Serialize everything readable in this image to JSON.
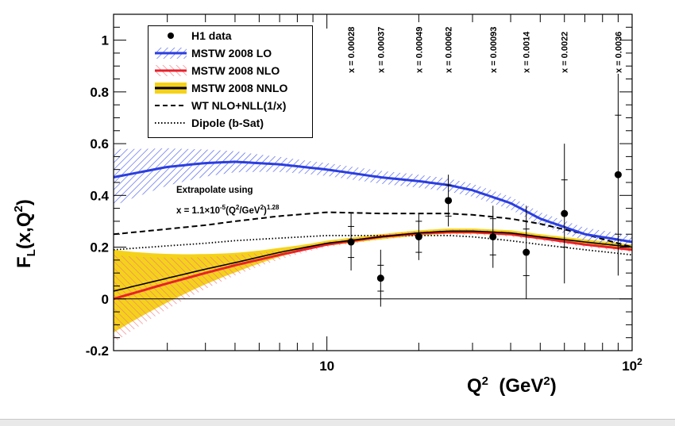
{
  "chart_data": {
    "type": "scatter",
    "title": "",
    "xlabel": {
      "main": "Q",
      "sup": "2",
      "unit": "(GeV",
      "unit_sup": "2",
      "close": ")"
    },
    "ylabel": {
      "main": "F",
      "sub": "L",
      "args": "(x,Q",
      "args_sup": "2",
      "close": ")"
    },
    "xscale": "log",
    "xlim": [
      2,
      100
    ],
    "ylim": [
      -0.2,
      1.1
    ],
    "yticks": [
      {
        "v": -0.2,
        "label": "-0.2"
      },
      {
        "v": 0,
        "label": "0"
      },
      {
        "v": 0.2,
        "label": "0.2"
      },
      {
        "v": 0.4,
        "label": "0.4"
      },
      {
        "v": 0.6,
        "label": "0.6"
      },
      {
        "v": 0.8,
        "label": "0.8"
      },
      {
        "v": 1.0,
        "label": "1"
      }
    ],
    "xticks_major": [
      {
        "v": 10,
        "label": "10"
      },
      {
        "v": 100,
        "label": "10",
        "sup": "2"
      }
    ],
    "grid": false,
    "zero_line": true,
    "legend_position": "top-left",
    "legend": [
      {
        "key": "h1",
        "label": "H1 data",
        "style": "marker"
      },
      {
        "key": "lo",
        "label": "MSTW 2008 LO",
        "style": "band",
        "color": "#2b3ee0"
      },
      {
        "key": "nlo",
        "label": "MSTW 2008 NLO",
        "style": "band",
        "color": "#e8212b"
      },
      {
        "key": "nnlo",
        "label": "MSTW 2008 NNLO",
        "style": "band",
        "color": "#000000",
        "fill": "#f5d21a"
      },
      {
        "key": "wt",
        "label": "WT NLO+NLL(1/x)",
        "style": "dashed"
      },
      {
        "key": "dipole",
        "label": "Dipole (b-Sat)",
        "style": "dotted"
      }
    ],
    "annotation": {
      "line1": "Extrapolate using",
      "line2_pre": "x = 1.1×10",
      "line2_exp1": "-5",
      "line2_mid": "(Q",
      "line2_exp2": "2",
      "line2_post": "/GeV",
      "line2_exp3": "2",
      "line2_close": ")",
      "line2_exp4": "1.28"
    },
    "x_values_labels": [
      {
        "q2": 12,
        "label": "x = 0.00028"
      },
      {
        "q2": 15,
        "label": "x = 0.00037"
      },
      {
        "q2": 20,
        "label": "x = 0.00049"
      },
      {
        "q2": 25,
        "label": "x = 0.00062"
      },
      {
        "q2": 35,
        "label": "x = 0.00093"
      },
      {
        "q2": 45,
        "label": "x = 0.0014"
      },
      {
        "q2": 60,
        "label": "x = 0.0022"
      },
      {
        "q2": 90,
        "label": "x = 0.0036"
      }
    ],
    "h1_data": [
      {
        "x": 12,
        "y": 0.22,
        "stat": 0.06,
        "tot": 0.11
      },
      {
        "x": 15,
        "y": 0.08,
        "stat": 0.05,
        "tot": 0.11
      },
      {
        "x": 20,
        "y": 0.24,
        "stat": 0.06,
        "tot": 0.09
      },
      {
        "x": 25,
        "y": 0.38,
        "stat": 0.06,
        "tot": 0.1
      },
      {
        "x": 35,
        "y": 0.24,
        "stat": 0.07,
        "tot": 0.12
      },
      {
        "x": 45,
        "y": 0.18,
        "stat": 0.09,
        "tot": 0.18
      },
      {
        "x": 60,
        "y": 0.33,
        "stat": 0.13,
        "tot": 0.27
      },
      {
        "x": 90,
        "y": 0.48,
        "stat": 0.23,
        "tot": 0.39
      }
    ],
    "series": [
      {
        "name": "MSTW 2008 LO",
        "color": "#2b3ee0",
        "x": [
          2,
          3,
          4,
          5,
          7,
          10,
          15,
          20,
          25,
          30,
          40,
          50,
          70,
          100
        ],
        "y": [
          0.47,
          0.51,
          0.525,
          0.53,
          0.52,
          0.5,
          0.47,
          0.455,
          0.44,
          0.42,
          0.37,
          0.31,
          0.25,
          0.22
        ],
        "band": 0.025,
        "band_low_q2": 0.11
      },
      {
        "name": "MSTW 2008 NLO",
        "color": "#e8212b",
        "x": [
          2,
          3,
          4,
          5,
          7,
          10,
          15,
          20,
          25,
          30,
          40,
          50,
          70,
          100
        ],
        "y": [
          0.0,
          0.06,
          0.1,
          0.13,
          0.17,
          0.21,
          0.24,
          0.253,
          0.258,
          0.258,
          0.25,
          0.235,
          0.21,
          0.19
        ],
        "band": 0.01,
        "band_low_q2": 0.17
      },
      {
        "name": "MSTW 2008 NNLO",
        "color": "#000000",
        "fill": "#f5d21a",
        "x": [
          2,
          3,
          4,
          5,
          7,
          10,
          15,
          20,
          25,
          30,
          40,
          50,
          70,
          100
        ],
        "y": [
          0.03,
          0.08,
          0.115,
          0.14,
          0.18,
          0.215,
          0.24,
          0.255,
          0.262,
          0.262,
          0.255,
          0.24,
          0.22,
          0.2
        ],
        "band": 0.01,
        "band_low_q2": 0.16
      },
      {
        "name": "WT NLO+NLL(1/x)",
        "style": "dashed",
        "x": [
          2,
          3,
          4,
          5,
          7,
          10,
          15,
          20,
          25,
          30,
          40,
          50,
          70,
          100
        ],
        "y": [
          0.25,
          0.27,
          0.285,
          0.3,
          0.32,
          0.335,
          0.33,
          0.33,
          0.33,
          0.325,
          0.31,
          0.29,
          0.25,
          0.2
        ]
      },
      {
        "name": "Dipole (b-Sat)",
        "style": "dotted",
        "x": [
          2,
          3,
          4,
          5,
          7,
          10,
          15,
          20,
          25,
          30,
          40,
          50,
          70,
          100
        ],
        "y": [
          0.19,
          0.205,
          0.215,
          0.225,
          0.235,
          0.245,
          0.245,
          0.245,
          0.245,
          0.24,
          0.225,
          0.21,
          0.19,
          0.17
        ]
      }
    ]
  }
}
